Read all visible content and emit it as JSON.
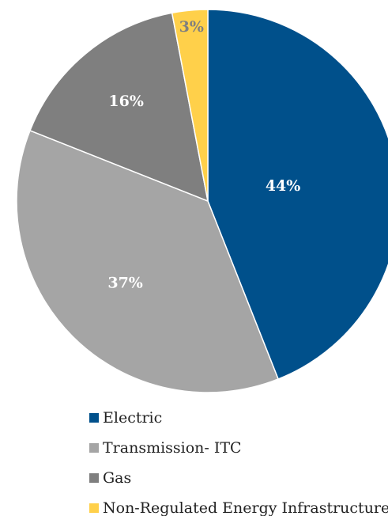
{
  "chart_data": {
    "type": "pie",
    "categories": [
      "Electric",
      "Transmission- ITC",
      "Gas",
      "Non-Regulated Energy Infrastructure"
    ],
    "values": [
      44,
      37,
      16,
      3
    ],
    "value_labels": [
      "44%",
      "37%",
      "16%",
      "3%"
    ],
    "colors": [
      "#00508b",
      "#a5a5a5",
      "#7f7f7f",
      "#ffd04a"
    ],
    "label_colors": [
      "#ffffff",
      "#ffffff",
      "#ffffff",
      "#7f7f7f"
    ],
    "legend": "bottom"
  }
}
